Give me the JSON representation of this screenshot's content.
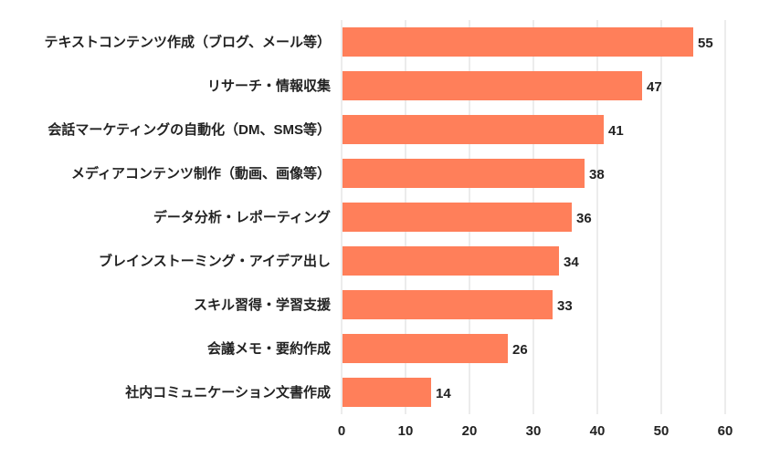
{
  "chart_data": {
    "type": "bar",
    "orientation": "horizontal",
    "categories": [
      "テキストコンテンツ作成（ブログ、メール等）",
      "リサーチ・情報収集",
      "会話マーケティングの自動化（DM、SMS等）",
      "メディアコンテンツ制作（動画、画像等）",
      "データ分析・レポーティング",
      "ブレインストーミング・アイデア出し",
      "スキル習得・学習支援",
      "会議メモ・要約作成",
      "社内コミュニケーション文書作成"
    ],
    "values": [
      55,
      47,
      41,
      38,
      36,
      34,
      33,
      26,
      14
    ],
    "xlim": [
      0,
      60
    ],
    "xticks": [
      0,
      10,
      20,
      30,
      40,
      50,
      60
    ],
    "grid": "vertical",
    "data_labels": true,
    "colors": {
      "bar": "#FF7F5A",
      "grid": "#D9D9D9",
      "text": "#222222"
    }
  }
}
